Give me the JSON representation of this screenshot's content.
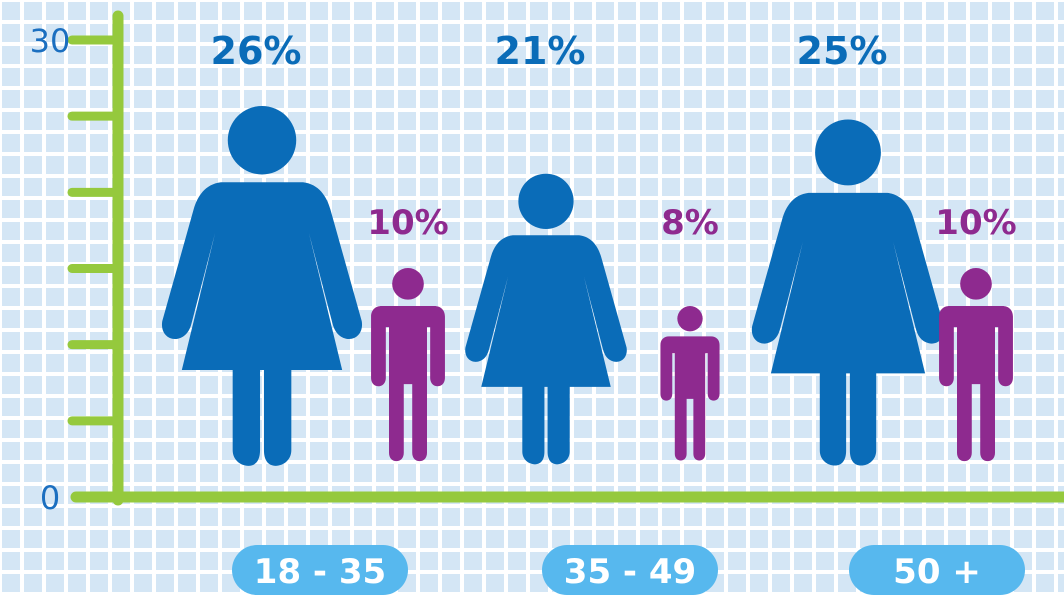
{
  "chart_data": {
    "type": "bar",
    "categories": [
      "18 - 35",
      "35 - 49",
      "50 +"
    ],
    "series": [
      {
        "values": [
          26,
          21,
          25
        ],
        "labels": [
          "26%",
          "21%",
          "25%"
        ],
        "color": "#0a6cb8",
        "icon": "woman-icon"
      },
      {
        "values": [
          10,
          8,
          10
        ],
        "labels": [
          "10%",
          "8%",
          "10%"
        ],
        "color": "#8e2a8f",
        "icon": "man-icon"
      }
    ],
    "ylim": [
      0,
      30
    ],
    "y_tick_labels": [
      "0",
      "30"
    ],
    "grid": true
  },
  "colors": {
    "background_grid": "#d4e6f5",
    "axis": "#95c93d",
    "axis_label": "#1b6fc0",
    "category_pill": "#57b8ee",
    "category_text": "#ffffff"
  }
}
